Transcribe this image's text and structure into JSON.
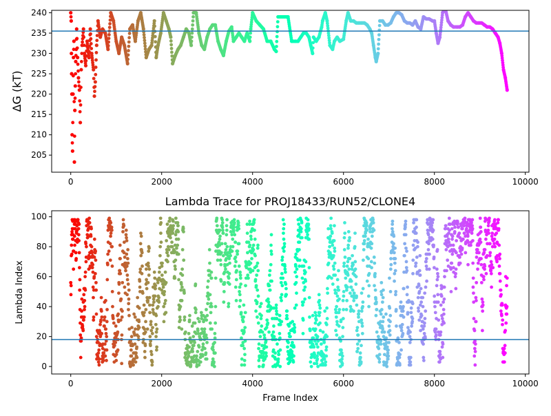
{
  "chart_data": [
    {
      "type": "scatter",
      "title": "",
      "xlabel": "",
      "ylabel": "ΔG (kT)",
      "xlim": [
        -420,
        10080
      ],
      "ylim": [
        200.8,
        240.6
      ],
      "xticks": [
        0,
        2000,
        4000,
        6000,
        8000,
        10000
      ],
      "yticks": [
        205,
        210,
        215,
        220,
        225,
        230,
        235,
        240
      ],
      "grid": false,
      "colormap": "rainbow (red at early frames to violet at late frames)",
      "reference_line": {
        "y": 235.5,
        "color": "#1f77b4"
      },
      "series": [
        {
          "points": [
            [
              0,
              240
            ],
            [
              10,
              238
            ],
            [
              15,
              230
            ],
            [
              20,
              225
            ],
            [
              25,
              220
            ],
            [
              30,
              210
            ],
            [
              40,
              206
            ],
            [
              50,
              220
            ],
            [
              60,
              229
            ],
            [
              70,
              233
            ],
            [
              80,
              203.3
            ],
            [
              90,
              216
            ],
            [
              100,
              222
            ],
            [
              110,
              228
            ],
            [
              120,
              231
            ],
            [
              130,
              236
            ],
            [
              150,
              229
            ],
            [
              170,
              224
            ],
            [
              190,
              221
            ],
            [
              210,
              213
            ],
            [
              230,
              226
            ],
            [
              250,
              232
            ],
            [
              280,
              236
            ],
            [
              300,
              230
            ],
            [
              330,
              227
            ],
            [
              360,
              233
            ],
            [
              400,
              229
            ],
            [
              430,
              236
            ],
            [
              460,
              230
            ],
            [
              500,
              226
            ],
            [
              520,
              219.5
            ],
            [
              540,
              223
            ],
            [
              570,
              232
            ],
            [
              600,
              238
            ],
            [
              650,
              234
            ],
            [
              700,
              236
            ],
            [
              760,
              235
            ],
            [
              820,
              231
            ],
            [
              880,
              240
            ],
            [
              940,
              238
            ],
            [
              1000,
              233
            ],
            [
              1060,
              230
            ],
            [
              1120,
              234
            ],
            [
              1180,
              232
            ],
            [
              1250,
              227.5
            ],
            [
              1300,
              236
            ],
            [
              1360,
              237
            ],
            [
              1420,
              233
            ],
            [
              1480,
              238
            ],
            [
              1540,
              240
            ],
            [
              1600,
              236
            ],
            [
              1660,
              229
            ],
            [
              1720,
              231
            ],
            [
              1780,
              232
            ],
            [
              1840,
              238
            ],
            [
              1880,
              229
            ],
            [
              1920,
              232
            ],
            [
              1980,
              235
            ],
            [
              2040,
              240
            ],
            [
              2100,
              238
            ],
            [
              2160,
              236
            ],
            [
              2200,
              234
            ],
            [
              2240,
              227.5
            ],
            [
              2300,
              229.5
            ],
            [
              2360,
              231
            ],
            [
              2420,
              232
            ],
            [
              2480,
              234
            ],
            [
              2540,
              236
            ],
            [
              2600,
              235
            ],
            [
              2650,
              232
            ],
            [
              2700,
              240
            ],
            [
              2760,
              240
            ],
            [
              2820,
              235
            ],
            [
              2880,
              232
            ],
            [
              2940,
              231
            ],
            [
              3000,
              234
            ],
            [
              3060,
              236
            ],
            [
              3120,
              237
            ],
            [
              3180,
              237
            ],
            [
              3240,
              233
            ],
            [
              3300,
              231
            ],
            [
              3360,
              229.5
            ],
            [
              3420,
              233
            ],
            [
              3480,
              235.5
            ],
            [
              3540,
              236.5
            ],
            [
              3580,
              233
            ],
            [
              3640,
              234
            ],
            [
              3700,
              235
            ],
            [
              3760,
              234
            ],
            [
              3820,
              233
            ],
            [
              3880,
              235
            ],
            [
              3940,
              233
            ],
            [
              3960,
              236
            ],
            [
              4000,
              240
            ],
            [
              4080,
              238
            ],
            [
              4160,
              237
            ],
            [
              4240,
              236
            ],
            [
              4320,
              233
            ],
            [
              4400,
              233
            ],
            [
              4480,
              231
            ],
            [
              4520,
              230.5
            ],
            [
              4560,
              239
            ],
            [
              4620,
              239
            ],
            [
              4700,
              239
            ],
            [
              4780,
              239
            ],
            [
              4860,
              233
            ],
            [
              4940,
              233
            ],
            [
              5000,
              233
            ],
            [
              5060,
              234
            ],
            [
              5120,
              235
            ],
            [
              5180,
              235
            ],
            [
              5240,
              234
            ],
            [
              5280,
              232
            ],
            [
              5320,
              230
            ],
            [
              5340,
              234
            ],
            [
              5400,
              233
            ],
            [
              5460,
              234
            ],
            [
              5520,
              236.5
            ],
            [
              5540,
              238
            ],
            [
              5600,
              240
            ],
            [
              5640,
              238
            ],
            [
              5700,
              232
            ],
            [
              5760,
              231
            ],
            [
              5800,
              233
            ],
            [
              5860,
              234
            ],
            [
              5920,
              233
            ],
            [
              6000,
              233.5
            ],
            [
              6060,
              238
            ],
            [
              6100,
              240
            ],
            [
              6160,
              238
            ],
            [
              6220,
              238
            ],
            [
              6280,
              237.5
            ],
            [
              6340,
              237.5
            ],
            [
              6400,
              237.5
            ],
            [
              6460,
              237.5
            ],
            [
              6520,
              237
            ],
            [
              6580,
              236
            ],
            [
              6620,
              235
            ],
            [
              6660,
              232
            ],
            [
              6700,
              229
            ],
            [
              6720,
              228
            ],
            [
              6760,
              230
            ],
            [
              6800,
              238
            ],
            [
              6860,
              238
            ],
            [
              6920,
              237
            ],
            [
              6980,
              237
            ],
            [
              7040,
              237.5
            ],
            [
              7100,
              239
            ],
            [
              7160,
              240
            ],
            [
              7220,
              240
            ],
            [
              7280,
              239.5
            ],
            [
              7340,
              238
            ],
            [
              7400,
              237.5
            ],
            [
              7460,
              237.5
            ],
            [
              7520,
              237
            ],
            [
              7580,
              238
            ],
            [
              7640,
              236.5
            ],
            [
              7700,
              236
            ],
            [
              7760,
              239
            ],
            [
              7820,
              238.5
            ],
            [
              7880,
              238.5
            ],
            [
              7960,
              238
            ],
            [
              8000,
              238
            ],
            [
              8040,
              235
            ],
            [
              8080,
              232.5
            ],
            [
              8120,
              234
            ],
            [
              8180,
              240
            ],
            [
              8240,
              241
            ],
            [
              8300,
              238
            ],
            [
              8360,
              237
            ],
            [
              8420,
              236.5
            ],
            [
              8500,
              236.5
            ],
            [
              8560,
              236.5
            ],
            [
              8620,
              237
            ],
            [
              8680,
              239
            ],
            [
              8740,
              240
            ],
            [
              8800,
              239
            ],
            [
              8860,
              238
            ],
            [
              8920,
              237.5
            ],
            [
              8980,
              237.5
            ],
            [
              9040,
              237.5
            ],
            [
              9100,
              237
            ],
            [
              9160,
              236.5
            ],
            [
              9220,
              236.5
            ],
            [
              9280,
              236
            ],
            [
              9340,
              235
            ],
            [
              9400,
              234
            ],
            [
              9440,
              232.5
            ],
            [
              9480,
              230
            ],
            [
              9520,
              226
            ],
            [
              9560,
              224
            ],
            [
              9600,
              221
            ]
          ]
        }
      ]
    },
    {
      "type": "scatter",
      "title": "Lambda Trace for PROJ18433/RUN52/CLONE4",
      "xlabel": "Frame Index",
      "ylabel": "Lambda Index",
      "xlim": [
        -420,
        10080
      ],
      "ylim": [
        -5,
        104
      ],
      "xticks": [
        0,
        2000,
        4000,
        6000,
        8000,
        10000
      ],
      "yticks": [
        0,
        20,
        40,
        60,
        80,
        100
      ],
      "grid": false,
      "colormap": "rainbow (red at early frames to violet at late frames)",
      "reference_line": {
        "y": 18,
        "color": "#1f77b4"
      },
      "series": [
        {
          "description": "dense scatter of lambda index 0-99 for every frame 0-9600",
          "x_range": [
            0,
            9600
          ],
          "y_range": [
            0,
            99
          ],
          "point_count_approx": 9600
        }
      ]
    }
  ]
}
